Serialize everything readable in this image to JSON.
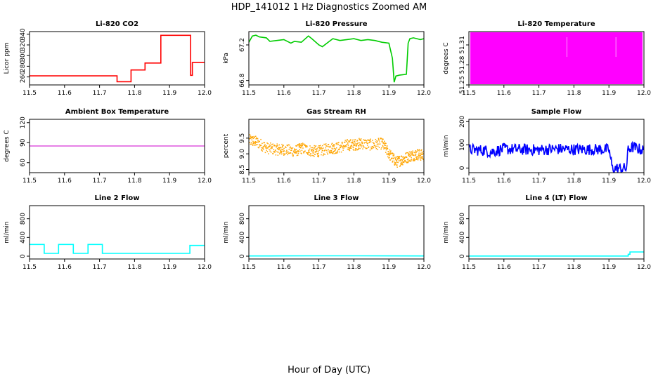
{
  "figure": {
    "title": "HDP_141012  1 Hz Diagnostics Zoomed AM",
    "xlabel": "Hour of Day (UTC)"
  },
  "chart_data": [
    {
      "type": "line",
      "title": "Li-820 CO2",
      "ylabel": "Licor ppm",
      "color": "#ff0000",
      "xlim": [
        11.5,
        12.0
      ],
      "ylim": [
        245,
        345
      ],
      "x_ticks": [
        "11.5",
        "11.6",
        "11.7",
        "11.8",
        "11.9",
        "12.0"
      ],
      "y_ticks": [
        "260",
        "280",
        "300",
        "320",
        "340"
      ],
      "y_tick_values": [
        260,
        280,
        300,
        320,
        340
      ],
      "series": [
        {
          "x": [
            11.5,
            11.75,
            11.75,
            11.79,
            11.79,
            11.83,
            11.83,
            11.875,
            11.875,
            11.96,
            11.96,
            11.965,
            11.965,
            12.0
          ],
          "y": [
            262,
            262,
            251,
            251,
            273,
            273,
            286,
            286,
            338,
            338,
            263,
            263,
            287,
            287
          ]
        }
      ]
    },
    {
      "type": "line",
      "title": "Li-820 Pressure",
      "ylabel": "kPa",
      "color": "#00cc00",
      "xlim": [
        11.5,
        12.0
      ],
      "ylim": [
        66.75,
        67.35
      ],
      "x_ticks": [
        "11.5",
        "11.6",
        "11.7",
        "11.8",
        "11.9",
        "12.0"
      ],
      "y_ticks": [
        "66.8",
        "67.2"
      ],
      "y_tick_values": [
        66.8,
        67.2
      ],
      "series": [
        {
          "x": [
            11.5,
            11.51,
            11.52,
            11.53,
            11.55,
            11.56,
            11.58,
            11.6,
            11.62,
            11.63,
            11.65,
            11.67,
            11.68,
            11.7,
            11.71,
            11.73,
            11.74,
            11.76,
            11.78,
            11.8,
            11.82,
            11.84,
            11.86,
            11.88,
            11.9,
            11.91,
            11.915,
            11.92,
            11.93,
            11.95,
            11.955,
            11.96,
            11.97,
            11.99,
            12.0
          ],
          "y": [
            67.23,
            67.3,
            67.31,
            67.29,
            67.28,
            67.24,
            67.25,
            67.26,
            67.22,
            67.24,
            67.23,
            67.3,
            67.27,
            67.2,
            67.18,
            67.24,
            67.27,
            67.25,
            67.26,
            67.27,
            67.25,
            67.26,
            67.25,
            67.23,
            67.22,
            67.05,
            66.78,
            66.85,
            66.86,
            66.87,
            67.22,
            67.27,
            67.28,
            67.26,
            67.27
          ]
        }
      ]
    },
    {
      "type": "area",
      "title": "Li-820 Temperature",
      "ylabel": "degrees C",
      "color": "#ff00ff",
      "xlim": [
        11.5,
        12.0
      ],
      "ylim": [
        51.25,
        51.33
      ],
      "x_ticks": [
        "11.5",
        "11.6",
        "11.7",
        "11.8",
        "11.9",
        "12.0"
      ],
      "y_ticks": [
        "51.25",
        "51.28",
        "51.31"
      ],
      "y_tick_values": [
        51.25,
        51.28,
        51.31
      ],
      "series": [
        {
          "x": [
            11.5,
            12.0
          ],
          "y_low": [
            51.25,
            51.25
          ],
          "y_high": [
            51.33,
            51.33
          ]
        }
      ]
    },
    {
      "type": "line",
      "title": "Ambient Box Temperature",
      "ylabel": "degrees C",
      "color": "#cc00cc",
      "xlim": [
        11.5,
        12.0
      ],
      "ylim": [
        45,
        125
      ],
      "x_ticks": [
        "11.5",
        "11.6",
        "11.7",
        "11.8",
        "11.9",
        "12.0"
      ],
      "y_ticks": [
        "60",
        "90",
        "120"
      ],
      "y_tick_values": [
        60,
        90,
        120
      ],
      "series": [
        {
          "x": [
            11.5,
            12.0
          ],
          "y": [
            85,
            85
          ]
        }
      ]
    },
    {
      "type": "scatter",
      "title": "Gas Stream RH",
      "ylabel": "percent",
      "color": "#ffa500",
      "xlim": [
        11.5,
        12.0
      ],
      "ylim": [
        8.4,
        10.1
      ],
      "x_ticks": [
        "11.5",
        "11.6",
        "11.7",
        "11.8",
        "11.9",
        "12.0"
      ],
      "y_ticks": [
        "8.5",
        "9.0",
        "9.5"
      ],
      "y_tick_values": [
        8.5,
        9.0,
        9.5
      ],
      "series": [
        {
          "x": [
            11.5,
            11.52,
            11.55,
            11.58,
            11.6,
            11.63,
            11.65,
            11.68,
            11.7,
            11.73,
            11.75,
            11.78,
            11.8,
            11.82,
            11.85,
            11.88,
            11.9,
            11.92,
            11.94,
            11.96,
            11.98,
            12.0
          ],
          "y": [
            9.45,
            9.4,
            9.2,
            9.15,
            9.15,
            9.1,
            9.2,
            9.1,
            9.1,
            9.2,
            9.2,
            9.3,
            9.3,
            9.35,
            9.3,
            9.35,
            9.0,
            8.75,
            8.85,
            8.95,
            9.0,
            8.95
          ],
          "spread": 0.18
        }
      ]
    },
    {
      "type": "line",
      "title": "Sample Flow",
      "ylabel": "ml/min",
      "color": "#0000ff",
      "xlim": [
        11.5,
        12.0
      ],
      "ylim": [
        -20,
        210
      ],
      "x_ticks": [
        "11.5",
        "11.6",
        "11.7",
        "11.8",
        "11.9",
        "12.0"
      ],
      "y_ticks": [
        "0",
        "100",
        "200"
      ],
      "y_tick_values": [
        0,
        100,
        200
      ],
      "series": [
        {
          "x": [
            11.5,
            11.55,
            11.56,
            11.6,
            11.65,
            11.7,
            11.75,
            11.8,
            11.85,
            11.9,
            11.91,
            11.95,
            11.955,
            11.97,
            12.0
          ],
          "y": [
            80,
            75,
            68,
            82,
            80,
            78,
            82,
            80,
            80,
            80,
            -2,
            -2,
            82,
            90,
            75
          ],
          "spread": 25
        }
      ]
    },
    {
      "type": "line",
      "title": "Line 2 Flow",
      "ylabel": "ml/min",
      "color": "#00ffff",
      "xlim": [
        11.5,
        12.0
      ],
      "ylim": [
        -60,
        1080
      ],
      "x_ticks": [
        "11.5",
        "11.6",
        "11.7",
        "11.8",
        "11.9",
        "12.0"
      ],
      "y_ticks": [
        "0",
        "400",
        "800"
      ],
      "y_tick_values": [
        0,
        400,
        800
      ],
      "series": [
        {
          "x": [
            11.5,
            11.542,
            11.542,
            11.583,
            11.583,
            11.625,
            11.625,
            11.667,
            11.667,
            11.708,
            11.708,
            11.958,
            11.958,
            12.0
          ],
          "y": [
            250,
            250,
            60,
            60,
            250,
            250,
            60,
            60,
            250,
            250,
            60,
            60,
            230,
            230
          ]
        }
      ]
    },
    {
      "type": "line",
      "title": "Line 3 Flow",
      "ylabel": "ml/min",
      "color": "#00ffff",
      "xlim": [
        11.5,
        12.0
      ],
      "ylim": [
        -60,
        1080
      ],
      "x_ticks": [
        "11.5",
        "11.6",
        "11.7",
        "11.8",
        "11.9",
        "12.0"
      ],
      "y_ticks": [
        "0",
        "400",
        "800"
      ],
      "y_tick_values": [
        0,
        400,
        800
      ],
      "series": [
        {
          "x": [
            11.5,
            11.6,
            11.7,
            11.8,
            11.9,
            12.0
          ],
          "y": [
            5,
            6,
            8,
            7,
            6,
            5
          ]
        }
      ]
    },
    {
      "type": "line",
      "title": "Line 4 (LT) Flow",
      "ylabel": "ml/min",
      "color": "#00ffff",
      "xlim": [
        11.5,
        12.0
      ],
      "ylim": [
        -60,
        1080
      ],
      "x_ticks": [
        "11.5",
        "11.6",
        "11.7",
        "11.8",
        "11.9",
        "12.0"
      ],
      "y_ticks": [
        "0",
        "400",
        "800"
      ],
      "y_tick_values": [
        0,
        400,
        800
      ],
      "series": [
        {
          "x": [
            11.5,
            11.955,
            11.955,
            11.96,
            11.96,
            12.0
          ],
          "y": [
            3,
            3,
            40,
            40,
            90,
            90
          ]
        }
      ]
    }
  ]
}
